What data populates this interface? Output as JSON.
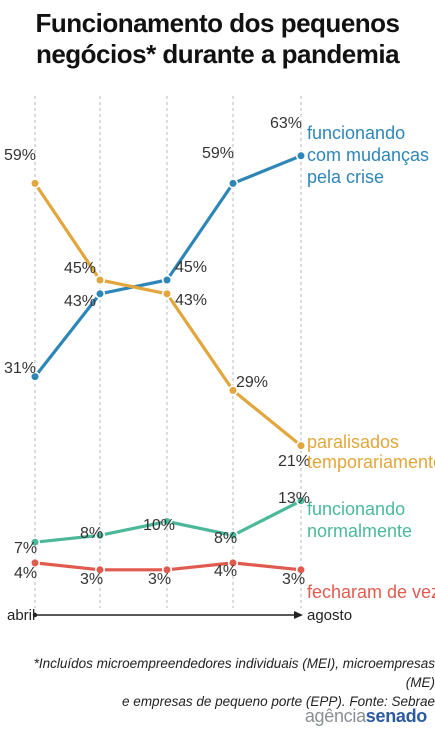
{
  "title_line1": "Funcionamento dos pequenos",
  "title_line2": "negócios* durante a pandemia",
  "footnote_line1": "*Incluídos microempreendedores individuais (MEI), microempresas (ME)",
  "footnote_line2": "e empresas de pequeno porte (EPP). Fonte: Sebrae",
  "logo": {
    "part1": "agência",
    "part2": "senado"
  },
  "chart_data": {
    "type": "line",
    "x_labels": [
      "abril",
      "",
      "",
      "",
      "agosto"
    ],
    "series": [
      {
        "name": "funcionando com mudanças pela crise",
        "label_lines": [
          "funcionando",
          "com mudanças",
          "pela crise"
        ],
        "values": [
          31,
          43,
          45,
          59,
          63
        ],
        "value_labels": [
          "31%",
          "43%",
          "45%",
          "59%",
          "63%"
        ],
        "color": "#2e86b8"
      },
      {
        "name": "paralisados temporariamente",
        "label_lines": [
          "paralisados",
          "temporariamente"
        ],
        "values": [
          59,
          45,
          43,
          29,
          21
        ],
        "value_labels": [
          "59%",
          "45%",
          "43%",
          "29%",
          "21%"
        ],
        "color": "#e2a63d"
      },
      {
        "name": "funcionando normalmente",
        "label_lines": [
          "funcionando",
          "normalmente"
        ],
        "values": [
          7,
          8,
          10,
          8,
          13
        ],
        "value_labels": [
          "7%",
          "8%",
          "10%",
          "8%",
          "13%"
        ],
        "color": "#4cb89a"
      },
      {
        "name": "fecharam de vez",
        "label_lines": [
          "fecharam de vez"
        ],
        "values": [
          4,
          3,
          3,
          4,
          3
        ],
        "value_labels": [
          "4%",
          "3%",
          "3%",
          "4%",
          "3%"
        ],
        "color": "#e05a4e"
      }
    ],
    "ylim": [
      0,
      65
    ],
    "grid": "vertical dashed"
  }
}
